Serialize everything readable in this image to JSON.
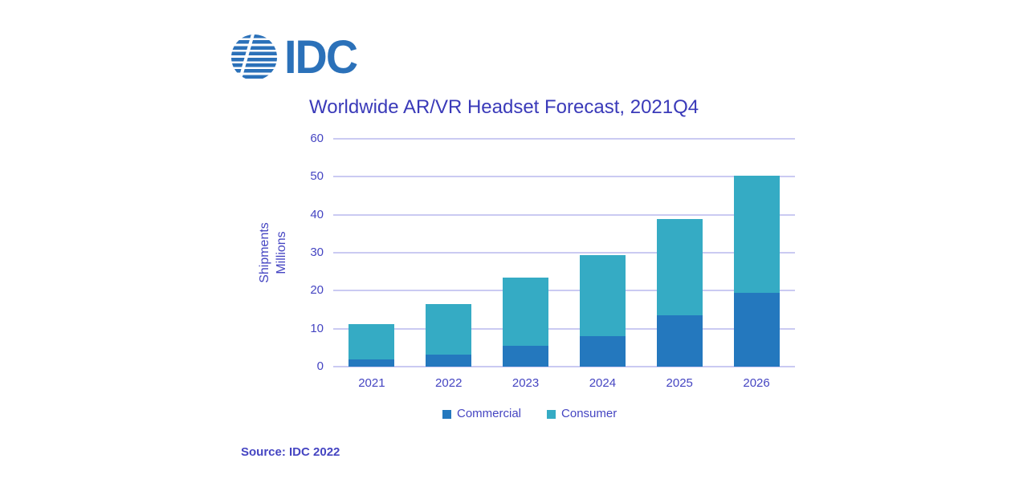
{
  "logo": {
    "text": "IDC"
  },
  "title": "Worldwide AR/VR Headset Forecast, 2021Q4",
  "y_axis": {
    "label_line1": "Shipments",
    "label_line2": "Millions"
  },
  "source": "Source: IDC 2022",
  "colors": {
    "commercial": "#2478BE",
    "consumer": "#35ABC4",
    "gridline": "#CACAF2",
    "axis_text": "#4545C2",
    "title_text": "#3A3AB9",
    "logo_blue": "#2B71B9"
  },
  "chart_data": {
    "type": "bar",
    "stacked": true,
    "title": "Worldwide AR/VR Headset Forecast, 2021Q4",
    "categories": [
      "2021",
      "2022",
      "2023",
      "2024",
      "2025",
      "2026"
    ],
    "series": [
      {
        "name": "Commercial",
        "color": "#2478BE",
        "values": [
          1.8,
          3.1,
          5.4,
          8.0,
          13.6,
          19.5
        ]
      },
      {
        "name": "Consumer",
        "color": "#35ABC4",
        "values": [
          9.4,
          13.4,
          18.0,
          21.4,
          25.2,
          30.7
        ]
      }
    ],
    "totals": [
      11.2,
      16.5,
      23.4,
      29.4,
      38.8,
      50.2
    ],
    "xlabel": "",
    "ylabel": "Shipments Millions",
    "ylim": [
      0,
      60
    ],
    "yticks": [
      0,
      10,
      20,
      30,
      40,
      50,
      60
    ],
    "grid": "horizontal",
    "legend_position": "bottom"
  }
}
